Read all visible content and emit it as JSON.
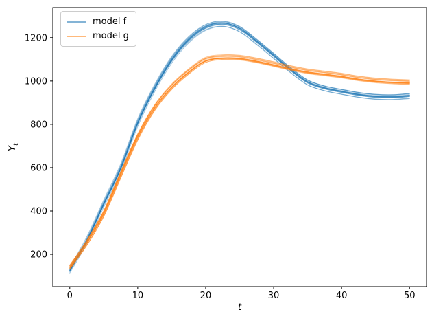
{
  "figure": {
    "background": "#ffffff",
    "axes_edge_color": "#000000",
    "tick_color": "#000000",
    "legend_border_color": "#cccccc"
  },
  "chart_data": {
    "type": "line",
    "title": "",
    "xlabel": "t",
    "ylabel": "Y_t",
    "xlim": [
      -2.5,
      52.5
    ],
    "ylim": [
      51,
      1339
    ],
    "xticks": [
      0,
      10,
      20,
      30,
      40,
      50
    ],
    "yticks": [
      200,
      400,
      600,
      800,
      1000,
      1200
    ],
    "grid": false,
    "legend": {
      "position": "upper-left",
      "entries": [
        "model f",
        "model g"
      ]
    },
    "x": [
      0,
      2.5,
      5,
      7.5,
      10,
      12.5,
      15,
      17.5,
      20,
      22.5,
      25,
      27.5,
      30,
      32.5,
      35,
      37.5,
      40,
      42.5,
      45,
      47.5,
      50
    ],
    "series": [
      {
        "name": "model f",
        "color": "#1f77b4",
        "values": [
          125,
          265,
          435,
          600,
          810,
          970,
          1100,
          1193,
          1250,
          1267,
          1242,
          1183,
          1118,
          1052,
          995,
          968,
          952,
          938,
          929,
          927,
          933
        ]
      },
      {
        "name": "model g",
        "color": "#ff7f0e",
        "values": [
          140,
          255,
          390,
          570,
          745,
          880,
          975,
          1045,
          1098,
          1110,
          1108,
          1095,
          1078,
          1060,
          1045,
          1035,
          1025,
          1012,
          1003,
          998,
          995
        ]
      }
    ],
    "ensemble": {
      "lines_per_series": 14,
      "strand_alpha": 0.42,
      "amp_jitter": 0.007,
      "offset_jitter": 12,
      "t_jitter": 0.15,
      "line_width": 1.1
    }
  }
}
